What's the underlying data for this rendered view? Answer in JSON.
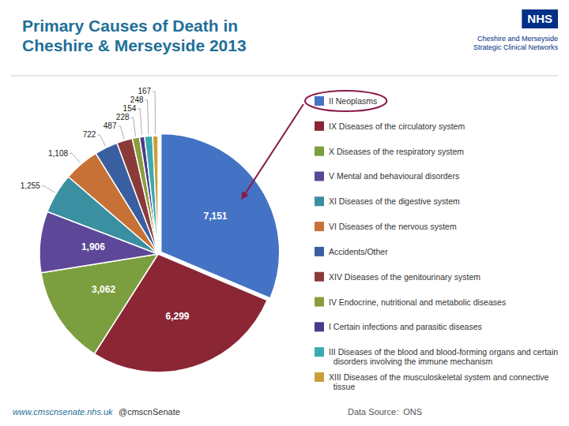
{
  "chart_data": {
    "type": "pie",
    "title": "Primary Causes of Death in\nCheshire & Merseyside 2013",
    "categories": [
      "II Neoplasms",
      "IX Diseases of the circulatory system",
      "X Diseases of the respiratory system",
      "V Mental and behavioural disorders",
      "XI Diseases of the digestive system",
      "VI Diseases of the nervous system",
      "Accidents/Other",
      "XIV Diseases of the genitourinary system",
      "IV Endocrine, nutritional and metabolic diseases",
      "I Certain infections and parasitic diseases",
      "III Diseases of the blood and blood-forming organs and certain\n  disorders involving the immune mechanism",
      "XIII Diseases of the musculoskeletal system and connective\n  tissue"
    ],
    "values": [
      7151,
      6299,
      3062,
      1906,
      1255,
      1108,
      722,
      487,
      228,
      154,
      248,
      167
    ],
    "value_labels": [
      "7,151",
      "6,299",
      "3,062",
      "1,906",
      "1,255",
      "1,108",
      "722",
      "487",
      "228",
      "154",
      "248",
      "167"
    ],
    "colors": [
      "#4472C4",
      "#8B2635",
      "#7B9E3E",
      "#5C4799",
      "#3A8FA0",
      "#C87137",
      "#3A5FA0",
      "#8B3A3A",
      "#8B9E3E",
      "#4A3A8B",
      "#3AAAB0",
      "#C8A037"
    ],
    "data_labels": true,
    "legend": "right",
    "annotations": [
      "NHS",
      "Cheshire and Merseyside\nStrategic Clinical Networks",
      "www.cmscnsenate.nhs.uk",
      "@cmscnSenate",
      "Data Source:  ONS"
    ]
  }
}
